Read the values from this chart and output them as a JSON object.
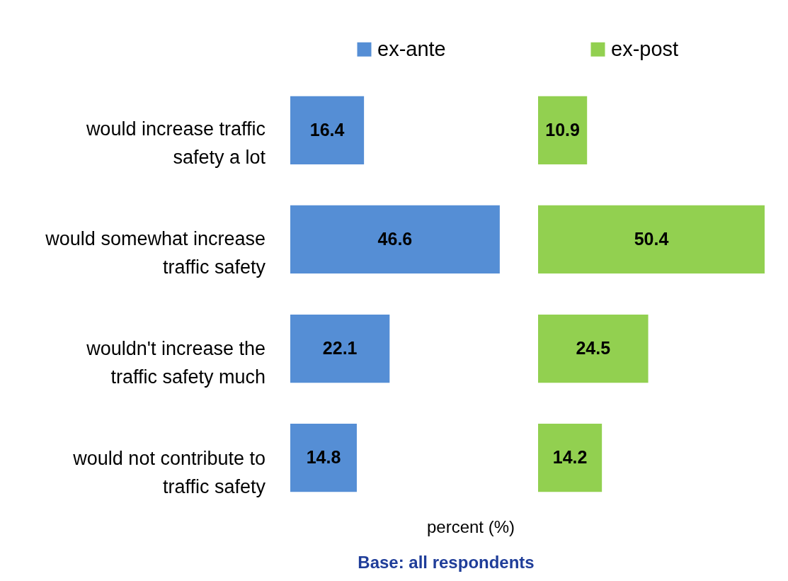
{
  "chart_data": [
    {
      "type": "bar",
      "orientation": "horizontal",
      "data_labels": true,
      "legend": "top",
      "categories": [
        "would increase traffic safety a lot",
        "would somewhat increase traffic safety",
        "wouldn't increase the traffic safety much",
        "would not contribute to traffic safety"
      ],
      "series": [
        {
          "name": "ex-ante",
          "color": "#558ed5",
          "values": [
            16.4,
            46.6,
            22.1,
            14.8
          ]
        }
      ]
    },
    {
      "type": "bar",
      "orientation": "horizontal",
      "data_labels": true,
      "legend": "top",
      "tick_labels": false,
      "xlabel": "percent (%)",
      "categories": [
        null,
        null,
        null,
        null
      ],
      "series": [
        {
          "name": "ex-post",
          "color": "#92d050",
          "values": [
            10.9,
            50.4,
            24.5,
            14.2
          ]
        }
      ],
      "annotations": [
        "Base: all respondents"
      ]
    }
  ]
}
